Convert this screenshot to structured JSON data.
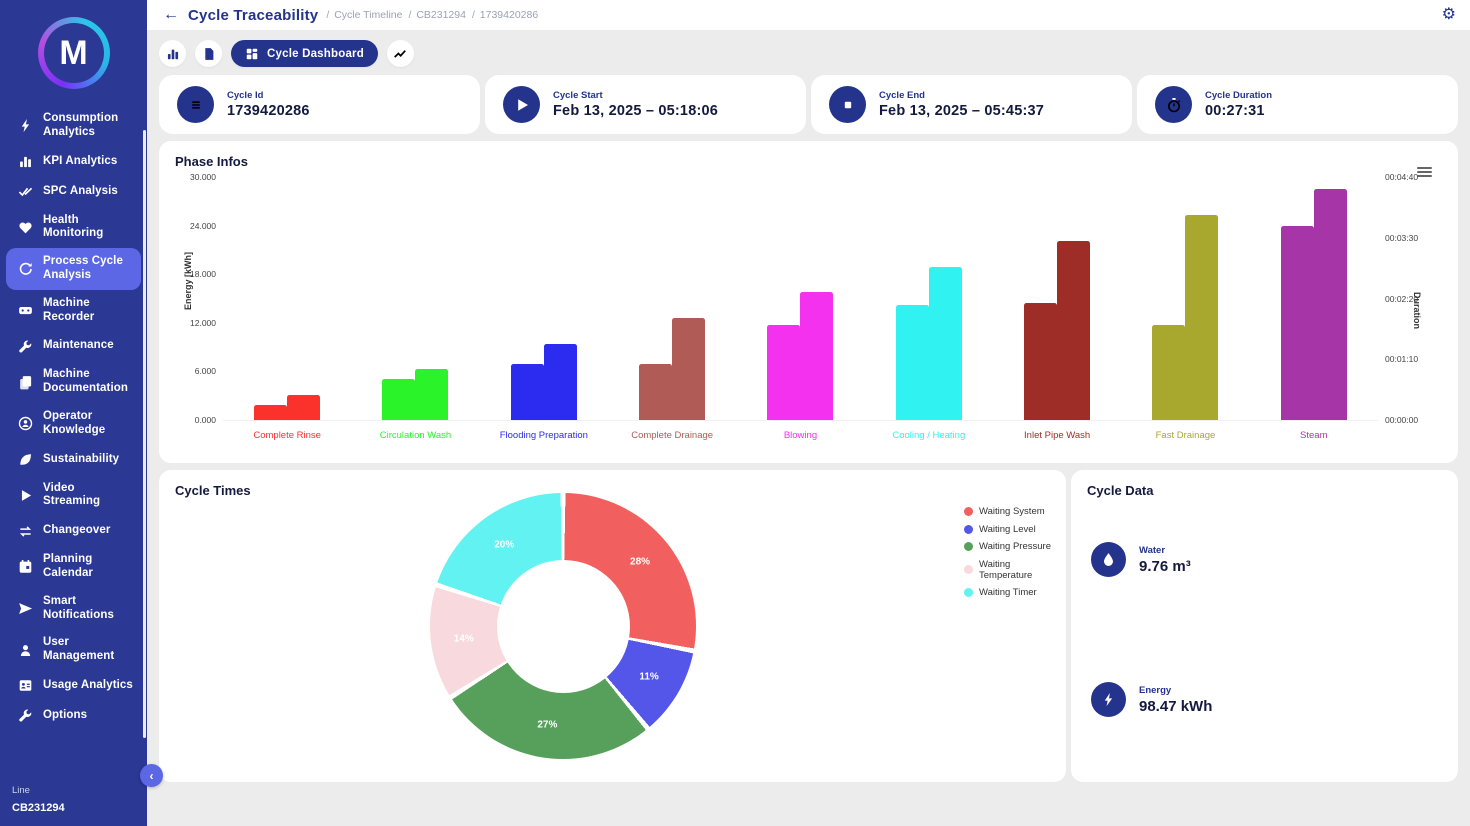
{
  "header": {
    "title": "Cycle Traceability",
    "breadcrumbs": [
      "Cycle Timeline",
      "CB231294",
      "1739420286"
    ]
  },
  "toolbar": {
    "dashboard_label": "Cycle Dashboard"
  },
  "sidebar": {
    "line_label": "Line",
    "line_value": "CB231294",
    "items": [
      {
        "label": "Consumption Analytics",
        "icon": "bolt-icon",
        "active": false
      },
      {
        "label": "KPI Analytics",
        "icon": "kpi-bars-icon",
        "active": false
      },
      {
        "label": "SPC Analysis",
        "icon": "double-check-icon",
        "active": false
      },
      {
        "label": "Health Monitoring",
        "icon": "heart-icon",
        "active": false
      },
      {
        "label": "Process Cycle Analysis",
        "icon": "cycle-icon",
        "active": true
      },
      {
        "label": "Machine Recorder",
        "icon": "recorder-icon",
        "active": false
      },
      {
        "label": "Maintenance",
        "icon": "wrench-icon",
        "active": false
      },
      {
        "label": "Machine Documentation",
        "icon": "documents-icon",
        "active": false
      },
      {
        "label": "Operator Knowledge",
        "icon": "operator-icon",
        "active": false
      },
      {
        "label": "Sustainability",
        "icon": "leaf-icon",
        "active": false
      },
      {
        "label": "Video Streaming",
        "icon": "play-icon",
        "active": false
      },
      {
        "label": "Changeover",
        "icon": "swap-icon",
        "active": false
      },
      {
        "label": "Planning Calendar",
        "icon": "calendar-icon",
        "active": false
      },
      {
        "label": "Smart Notifications",
        "icon": "send-icon",
        "active": false
      },
      {
        "label": "User Management",
        "icon": "user-icon",
        "active": false
      },
      {
        "label": "Usage Analytics",
        "icon": "id-card-icon",
        "active": false
      },
      {
        "label": "Options",
        "icon": "wrench-icon",
        "active": false
      }
    ]
  },
  "cards": [
    {
      "label": "Cycle Id",
      "value": "1739420286",
      "icon": "list-icon"
    },
    {
      "label": "Cycle Start",
      "value": "Feb 13, 2025 – 05:18:06",
      "icon": "play-icon"
    },
    {
      "label": "Cycle End",
      "value": "Feb 13, 2025 – 05:45:37",
      "icon": "stop-icon"
    },
    {
      "label": "Cycle Duration",
      "value": "00:27:31",
      "icon": "stopwatch-icon"
    }
  ],
  "chart_data": [
    {
      "type": "bar",
      "title": "Phase Infos",
      "categories": [
        "Complete Rinse",
        "Circulation Wash",
        "Flooding Preparation",
        "Complete Drainage",
        "Blowing",
        "Cooling / Heating",
        "Inlet Pipe Wash",
        "Fast Drainage",
        "Steam"
      ],
      "category_colors": [
        "#fb322b",
        "#2bf32a",
        "#2c2bf0",
        "#b05b56",
        "#f431ef",
        "#30f2f0",
        "#9e2d28",
        "#a8a82f",
        "#a636a8"
      ],
      "series": [
        {
          "name": "Energy [kWh]",
          "axis": "left",
          "values": [
            1.9,
            5.1,
            6.9,
            6.9,
            11.7,
            14.2,
            14.4,
            11.7,
            24.0
          ]
        },
        {
          "name": "Duration",
          "axis": "right",
          "values_seconds": [
            29,
            59,
            88,
            118,
            148,
            176,
            206,
            236,
            266
          ]
        }
      ],
      "left_axis": {
        "label": "Energy [kWh]",
        "ticks": [
          "0.000",
          "6.000",
          "12.000",
          "18.000",
          "24.000",
          "30.000"
        ],
        "min": 0,
        "max": 30
      },
      "right_axis": {
        "label": "Duration",
        "ticks": [
          "00:00:00",
          "00:01:10",
          "00:02:20",
          "00:03:30",
          "00:04:40"
        ],
        "min_seconds": 0,
        "max_seconds": 280
      },
      "grid": false,
      "legend_position": "none"
    },
    {
      "type": "pie",
      "title": "Cycle Times",
      "inner_radius_ratio": 0.5,
      "legend_position": "right",
      "slices": [
        {
          "label": "Waiting System",
          "percent": 28,
          "color": "#f25f5f"
        },
        {
          "label": "Waiting Level",
          "percent": 11,
          "color": "#5356e8"
        },
        {
          "label": "Waiting Pressure",
          "percent": 27,
          "color": "#57a05c"
        },
        {
          "label": "Waiting Temperature",
          "percent": 14,
          "color": "#f8d9de"
        },
        {
          "label": "Waiting Timer",
          "percent": 20,
          "color": "#63f2f2"
        }
      ]
    }
  ],
  "cycle_data": {
    "title": "Cycle Data",
    "metrics": [
      {
        "label": "Water",
        "value": "9.76 m³",
        "icon": "water-drop-icon"
      },
      {
        "label": "Energy",
        "value": "98.47 kWh",
        "icon": "bolt-icon"
      }
    ]
  },
  "colors": {
    "sidebar_bg": "#2b3894",
    "active_item": "#5b67e4",
    "accent_navy": "#24338c",
    "content_bg": "#ececec"
  }
}
